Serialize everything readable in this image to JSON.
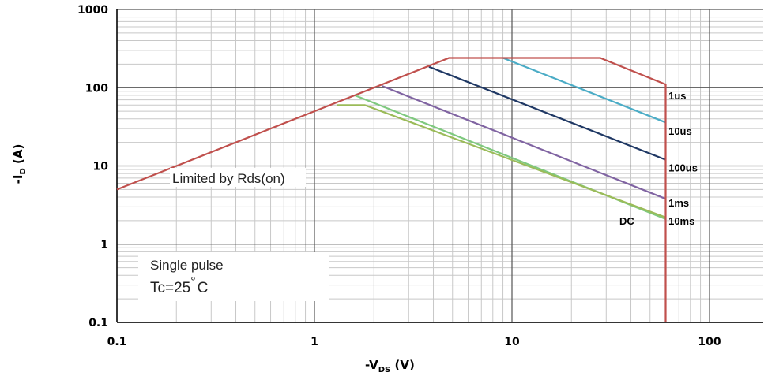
{
  "chart_data": {
    "type": "line",
    "x_scale": "log",
    "y_scale": "log",
    "xlim": [
      0.1,
      150
    ],
    "ylim": [
      0.1,
      1000
    ],
    "grid": true,
    "x_ticks": [
      "0.1",
      "1",
      "10",
      "100"
    ],
    "y_ticks": [
      "0.1",
      "1",
      "10",
      "100",
      "1000"
    ],
    "xlabel": {
      "prefix": "-V",
      "sub": "DS",
      "suffix": " (V)"
    },
    "ylabel": {
      "prefix": "-I",
      "sub": "D",
      "suffix": " (A)"
    },
    "annotations": {
      "limited": "Limited by Rds(on)",
      "pulse": "Single pulse",
      "tc_prefix": "Tc=25",
      "tc_deg": "°",
      "tc_unit": "C"
    },
    "series": [
      {
        "name": "DC",
        "color": "#7fc97f",
        "points": [
          [
            1.6,
            80
          ],
          [
            60,
            2.1
          ]
        ]
      },
      {
        "name": "10ms",
        "color": "#9bbb59",
        "points": [
          [
            1.3,
            60
          ],
          [
            1.8,
            60
          ],
          [
            60,
            2.2
          ]
        ]
      },
      {
        "name": "1ms",
        "color": "#8064a2",
        "points": [
          [
            2.2,
            105
          ],
          [
            60,
            3.8
          ]
        ]
      },
      {
        "name": "100us",
        "color": "#1f3864",
        "points": [
          [
            3.8,
            185
          ],
          [
            60,
            12
          ]
        ]
      },
      {
        "name": "10us",
        "color": "#4bacc6",
        "points": [
          [
            9,
            240
          ],
          [
            60,
            36
          ]
        ]
      },
      {
        "name": "1us",
        "color": "#c0504d",
        "points": [
          [
            0.1,
            5
          ],
          [
            4.8,
            240
          ],
          [
            28,
            240
          ],
          [
            60,
            110
          ],
          [
            60,
            0.1
          ]
        ]
      }
    ],
    "labels": [
      {
        "text": "1us",
        "x": 62,
        "y": 80
      },
      {
        "text": "10us",
        "x": 62,
        "y": 28
      },
      {
        "text": "100us",
        "x": 62,
        "y": 9.5
      },
      {
        "text": "1ms",
        "x": 62,
        "y": 3.4
      },
      {
        "text": "10ms",
        "x": 62,
        "y": 2.0
      },
      {
        "text": "DC",
        "x": 35,
        "y": 2.0
      }
    ]
  }
}
